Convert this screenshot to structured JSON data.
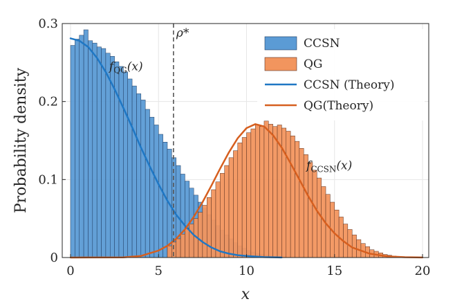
{
  "chart_data": {
    "type": "histogram",
    "xlabel": "x",
    "ylabel": "Probability density",
    "xlim": [
      0,
      20
    ],
    "ylim": [
      0,
      0.3
    ],
    "xticks": [
      0,
      5,
      10,
      15,
      20
    ],
    "xtick_labels": [
      "0",
      "5",
      "10",
      "15",
      "20"
    ],
    "yticks": [
      0,
      0.1,
      0.2,
      0.3
    ],
    "ytick_labels": [
      "0",
      "0.1",
      "0.2",
      "0.3"
    ],
    "grid": true,
    "legend_position": "top-right",
    "bin_width": 0.25,
    "series": [
      {
        "name": "CCSN",
        "kind": "histogram",
        "color": "#5B9BD5",
        "edge_color": "#1F3A5F",
        "bin_start": 0,
        "values": [
          0.272,
          0.28,
          0.285,
          0.292,
          0.278,
          0.275,
          0.27,
          0.268,
          0.262,
          0.258,
          0.251,
          0.245,
          0.238,
          0.229,
          0.22,
          0.21,
          0.202,
          0.19,
          0.18,
          0.17,
          0.158,
          0.148,
          0.139,
          0.128,
          0.118,
          0.107,
          0.098,
          0.089,
          0.08,
          0.071,
          0.063,
          0.055,
          0.048,
          0.041,
          0.035,
          0.029,
          0.024,
          0.019,
          0.015,
          0.012,
          0.009,
          0.007,
          0.005,
          0.004,
          0.003,
          0.002,
          0.0015,
          0.001,
          0.0006,
          0.0003
        ]
      },
      {
        "name": "QG",
        "kind": "histogram",
        "color": "#F2955E",
        "edge_color": "#5A3020",
        "bin_start": 5.5,
        "values": [
          0.015,
          0.02,
          0.024,
          0.03,
          0.038,
          0.043,
          0.05,
          0.058,
          0.067,
          0.077,
          0.087,
          0.097,
          0.108,
          0.118,
          0.128,
          0.137,
          0.147,
          0.154,
          0.16,
          0.165,
          0.17,
          0.168,
          0.175,
          0.171,
          0.168,
          0.17,
          0.166,
          0.162,
          0.156,
          0.149,
          0.14,
          0.132,
          0.122,
          0.112,
          0.102,
          0.091,
          0.081,
          0.071,
          0.061,
          0.052,
          0.043,
          0.036,
          0.029,
          0.023,
          0.018,
          0.014,
          0.01,
          0.008,
          0.006,
          0.004,
          0.003,
          0.002,
          0.0015,
          0.001,
          0.0007,
          0.0005,
          0.0003,
          0.0002
        ]
      },
      {
        "name": "CCSN (Theory)",
        "kind": "line",
        "color": "#1F77C4",
        "x": [
          0,
          0.5,
          1,
          1.5,
          2,
          2.5,
          3,
          3.5,
          4,
          4.5,
          5,
          5.5,
          6,
          6.5,
          7,
          7.5,
          8,
          8.5,
          9,
          9.5,
          10,
          11,
          12
        ],
        "y": [
          0.281,
          0.278,
          0.27,
          0.256,
          0.238,
          0.216,
          0.192,
          0.167,
          0.141,
          0.117,
          0.094,
          0.073,
          0.055,
          0.041,
          0.029,
          0.02,
          0.013,
          0.008,
          0.005,
          0.003,
          0.002,
          0.0005,
          0.0001
        ]
      },
      {
        "name": "QG(Theory)",
        "kind": "line",
        "color": "#D65F1F",
        "x": [
          0,
          3,
          4,
          5,
          5.5,
          6,
          6.5,
          7,
          7.5,
          8,
          8.5,
          9,
          9.5,
          10,
          10.5,
          11,
          11.5,
          12,
          12.5,
          13,
          13.5,
          14,
          14.5,
          15,
          15.5,
          16,
          17,
          18,
          19,
          20
        ],
        "y": [
          0,
          0.0003,
          0.002,
          0.009,
          0.015,
          0.024,
          0.036,
          0.052,
          0.071,
          0.092,
          0.114,
          0.135,
          0.153,
          0.166,
          0.171,
          0.168,
          0.157,
          0.141,
          0.121,
          0.1,
          0.079,
          0.06,
          0.044,
          0.031,
          0.021,
          0.013,
          0.005,
          0.0015,
          0.0004,
          0.0001
        ]
      }
    ],
    "threshold": {
      "x": 5.85,
      "label": "ρ*",
      "style": "dashed"
    },
    "annotations": [
      {
        "text": "fQG(x)",
        "main": "f",
        "sub": "QG",
        "tail": "(x)",
        "x": 2.2,
        "y": 0.24
      },
      {
        "text": "fCCSN(x)",
        "main": "f",
        "sub": "CCSN",
        "tail": "(x)",
        "x": 13.4,
        "y": 0.113
      }
    ]
  }
}
